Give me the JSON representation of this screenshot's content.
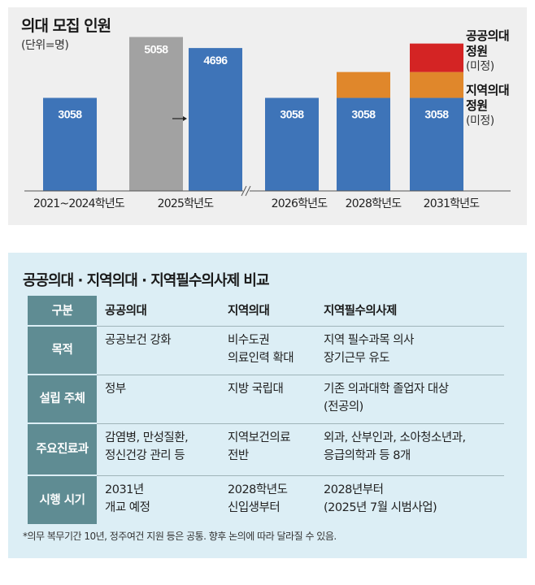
{
  "chart_data": {
    "type": "bar",
    "title": "의대 모집 인원",
    "subtitle": "(단위=명)",
    "categories": [
      "2021~2024학년도",
      "2025학년도",
      "2026학년도",
      "2028학년도",
      "2031학년도"
    ],
    "series": [
      {
        "name": "",
        "values": [
          3058,
          5058,
          3058,
          3058,
          3058
        ]
      },
      {
        "name": "",
        "values": [
          null,
          4696,
          null,
          null,
          null
        ]
      },
      {
        "name": "지역의대 정원 (미정)",
        "values": [
          0,
          0,
          0,
          1000,
          1000
        ]
      },
      {
        "name": "공공의대 정원 (미정)",
        "values": [
          0,
          0,
          0,
          0,
          1100
        ]
      }
    ],
    "bar_labels": [
      "3058",
      "5058",
      "4696",
      "3058",
      "3058",
      "3058"
    ],
    "ylim": [
      0,
      6000
    ],
    "colors": {
      "base": "#3e74b8",
      "gray": "#a2a2a2",
      "regional": "#e0872b",
      "public": "#d42424"
    },
    "legend": [
      {
        "line1": "공공의대",
        "line2": "정원",
        "line3": "(미정)",
        "color": "#d42424"
      },
      {
        "line1": "지역의대",
        "line2": "정원",
        "line3": "(미정)",
        "color": "#e0872b"
      }
    ],
    "axis_break_symbol": "≈"
  },
  "table": {
    "title": "공공의대 · 지역의대 · 지역필수의사제 비교",
    "header": {
      "label": "구분",
      "cols": [
        "공공의대",
        "지역의대",
        "지역필수의사제"
      ]
    },
    "rows": [
      {
        "label": [
          "목적"
        ],
        "cells": [
          [
            "공공보건 강화"
          ],
          [
            "비수도권",
            "의료인력 확대"
          ],
          [
            "지역 필수과목 의사",
            "장기근무 유도"
          ]
        ]
      },
      {
        "label": [
          "설립 주체"
        ],
        "cells": [
          [
            "정부"
          ],
          [
            "지방 국립대"
          ],
          [
            "기존 의과대학 졸업자 대상",
            "(전공의)"
          ]
        ]
      },
      {
        "label": [
          "주요",
          "진료과"
        ],
        "cells": [
          [
            "감염병, 만성질환,",
            "정신건강 관리 등"
          ],
          [
            "지역보건의료",
            "전반"
          ],
          [
            "외과, 산부인과, 소아청소년과,",
            "응급의학과 등 8개"
          ]
        ]
      },
      {
        "label": [
          "시행 시기"
        ],
        "cells": [
          [
            "2031년",
            "개교 예정"
          ],
          [
            "2028학년도",
            "신입생부터"
          ],
          [
            "2028년부터",
            "(2025년 7월 시범사업)"
          ]
        ]
      }
    ],
    "footnote": "*의무 복무기간 10년, 정주여건 지원 등은 공통. 향후 논의에 따라 달라질 수 있음."
  }
}
